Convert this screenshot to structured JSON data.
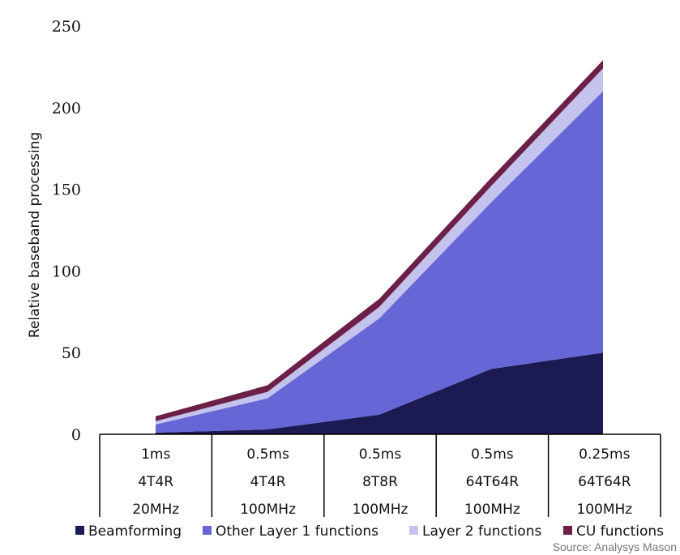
{
  "chart_data": {
    "type": "area",
    "stacked": true,
    "ylabel": "Relative baseband processing",
    "ylim": [
      0,
      250
    ],
    "yticks": [
      0,
      50,
      100,
      150,
      200,
      250
    ],
    "categories": [
      [
        "1ms",
        "4T4R",
        "20MHz"
      ],
      [
        "0.5ms",
        "4T4R",
        "100MHz"
      ],
      [
        "0.5ms",
        "8T8R",
        "100MHz"
      ],
      [
        "0.5ms",
        "64T64R",
        "100MHz"
      ],
      [
        "0.25ms",
        "64T64R",
        "100MHz"
      ]
    ],
    "series": [
      {
        "name": "Beamforming",
        "color": "#1b1a52",
        "values": [
          1,
          3,
          12,
          40,
          50
        ]
      },
      {
        "name": "Other Layer 1 functions",
        "color": "#6666d6",
        "values": [
          5,
          19,
          59,
          102,
          160
        ]
      },
      {
        "name": "Layer 2 functions",
        "color": "#c4c3ee",
        "values": [
          2,
          4,
          7,
          10,
          14
        ]
      },
      {
        "name": "CU functions",
        "color": "#6c2048",
        "values": [
          3,
          4,
          5,
          5,
          5
        ]
      }
    ],
    "source": "Source: Analysys Mason"
  }
}
